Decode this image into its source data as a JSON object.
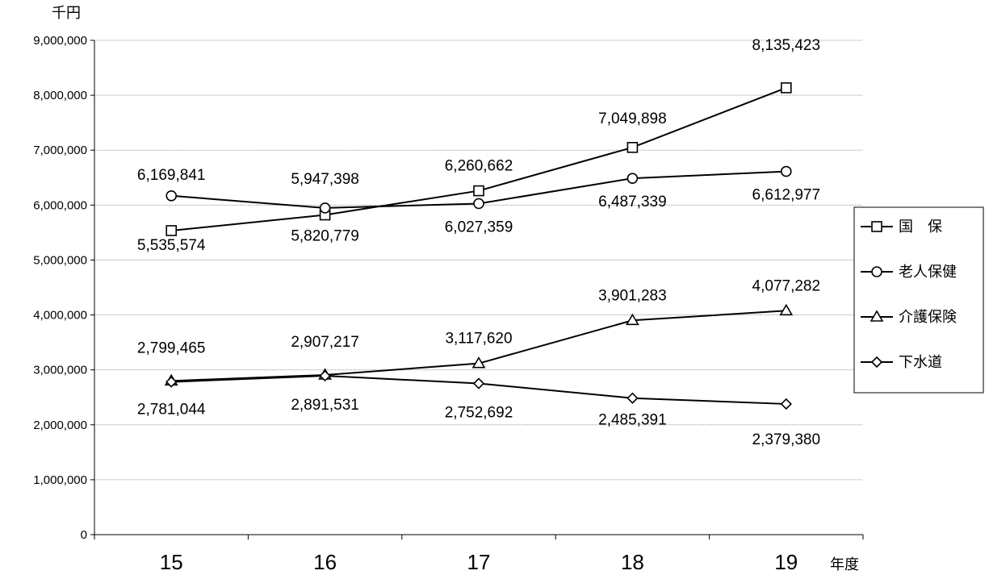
{
  "chart_data": {
    "type": "line",
    "categories": [
      "15",
      "16",
      "17",
      "18",
      "19"
    ],
    "yunit": "千円",
    "xunit": "年度",
    "ylim": [
      0,
      9000000
    ],
    "yticks": [
      {
        "value": 0,
        "label": "0"
      },
      {
        "value": 1000000,
        "label": "1,000,000"
      },
      {
        "value": 2000000,
        "label": "2,000,000"
      },
      {
        "value": 3000000,
        "label": "3,000,000"
      },
      {
        "value": 4000000,
        "label": "4,000,000"
      },
      {
        "value": 5000000,
        "label": "5,000,000"
      },
      {
        "value": 6000000,
        "label": "6,000,000"
      },
      {
        "value": 7000000,
        "label": "7,000,000"
      },
      {
        "value": 8000000,
        "label": "8,000,000"
      },
      {
        "value": 9000000,
        "label": "9,000,000"
      }
    ],
    "grid": true,
    "legend": "right",
    "series": [
      {
        "name": "国　保",
        "marker": "square",
        "values": [
          5535574,
          5820779,
          6260662,
          7049898,
          8135423
        ],
        "labels": [
          "5,535,574",
          "5,820,779",
          "6,260,662",
          "7,049,898",
          "8,135,423"
        ]
      },
      {
        "name": "老人保健",
        "marker": "circle",
        "values": [
          6169841,
          5947398,
          6027359,
          6487339,
          6612977
        ],
        "labels": [
          "6,169,841",
          "5,947,398",
          "6,027,359",
          "6,487,339",
          "6,612,977"
        ]
      },
      {
        "name": "介護保険",
        "marker": "triangle",
        "values": [
          2799465,
          2907217,
          3117620,
          3901283,
          4077282
        ],
        "labels": [
          "2,799,465",
          "2,907,217",
          "3,117,620",
          "3,901,283",
          "4,077,282"
        ]
      },
      {
        "name": "下水道",
        "marker": "diamond",
        "values": [
          2781044,
          2891531,
          2752692,
          2485391,
          2379380
        ],
        "labels": [
          "2,781,044",
          "2,891,531",
          "2,752,692",
          "2,485,391",
          "2,379,380"
        ]
      }
    ]
  }
}
